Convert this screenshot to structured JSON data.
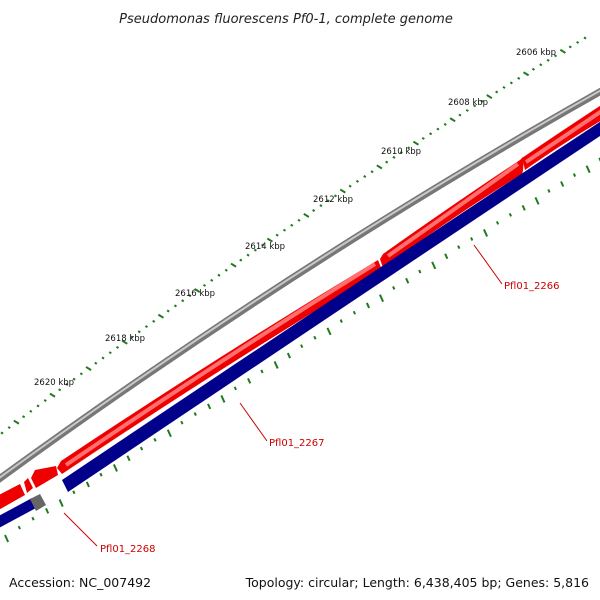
{
  "title": "Pseudomonas fluorescens Pf0-1, complete genome",
  "ticks": [
    "2606 kbp",
    "2608 kbp",
    "2610 kbp",
    "2612 kbp",
    "2614 kbp",
    "2616 kbp",
    "2618 kbp",
    "2620 kbp"
  ],
  "genes": [
    "Pfl01_2266",
    "Pfl01_2267",
    "Pfl01_2268"
  ],
  "footer": {
    "accession": "Accession: NC_007492",
    "summary": "Topology: circular; Length: 6,438,405 bp; Genes: 5,816"
  },
  "colors": {
    "backbone": "#8a8a8a",
    "forward_cds": "#ee0000",
    "reverse_cds": "#00008a",
    "gc_marks": "#207a20",
    "gene_label": "#cc0000"
  }
}
